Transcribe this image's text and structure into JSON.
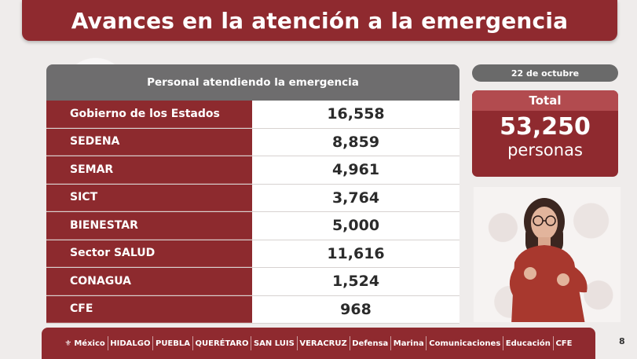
{
  "title": "Avances en la atención a la emergencia",
  "table": {
    "header": "Personal atendiendo la emergencia",
    "rows": [
      {
        "label": "Gobierno de los Estados",
        "value": "16,558"
      },
      {
        "label": "SEDENA",
        "value": "8,859"
      },
      {
        "label": "SEMAR",
        "value": "4,961"
      },
      {
        "label": "SICT",
        "value": "3,764"
      },
      {
        "label": "BIENESTAR",
        "value": "5,000"
      },
      {
        "label": "Sector SALUD",
        "value": "11,616"
      },
      {
        "label": "CONAGUA",
        "value": "1,524"
      },
      {
        "label": "CFE",
        "value": "968"
      }
    ]
  },
  "date": "22 de octubre",
  "total": {
    "label": "Total",
    "value": "53,250",
    "unit": "personas"
  },
  "footer": {
    "logos": [
      "México",
      "HIDALGO",
      "PUEBLA",
      "QUERÉTARO",
      "SAN LUIS",
      "VERACRUZ",
      "Defensa",
      "Marina",
      "Comunicaciones",
      "Educación",
      "CFE"
    ]
  },
  "page_number": "8",
  "colors": {
    "brand": "#8f2a2f",
    "header_gray": "#6e6d6e",
    "accent_light": "#b24b4f"
  }
}
